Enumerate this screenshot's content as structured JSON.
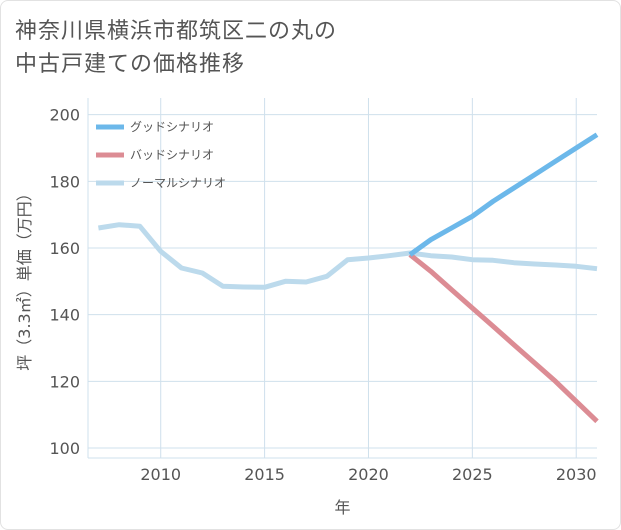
{
  "title": {
    "line1": "神奈川県横浜市都筑区二の丸の",
    "line2": "中古戸建ての価格推移"
  },
  "chart_data": {
    "type": "line",
    "xlabel": "年",
    "ylabel": "坪（3.3㎡）単価（万円）",
    "xlim": [
      2006.5,
      2031
    ],
    "ylim": [
      97,
      205
    ],
    "x_ticks": [
      2010,
      2015,
      2020,
      2025,
      2030
    ],
    "y_ticks": [
      100,
      120,
      140,
      160,
      180,
      200
    ],
    "grid": true,
    "legend_position": "top-left",
    "series": [
      {
        "name": "グッドシナリオ",
        "color": "#6cb8ea",
        "points": [
          [
            2022,
            158
          ],
          [
            2023,
            162.5
          ],
          [
            2024,
            166
          ],
          [
            2025,
            169.5
          ],
          [
            2026,
            174
          ],
          [
            2027,
            178
          ],
          [
            2028,
            182
          ],
          [
            2029,
            186
          ],
          [
            2030,
            190
          ],
          [
            2031,
            194
          ]
        ]
      },
      {
        "name": "バッドシナリオ",
        "color": "#dc8c94",
        "points": [
          [
            2022,
            158
          ],
          [
            2023,
            153
          ],
          [
            2024,
            147.5
          ],
          [
            2025,
            142
          ],
          [
            2026,
            136.5
          ],
          [
            2027,
            131
          ],
          [
            2028,
            125.5
          ],
          [
            2029,
            120
          ],
          [
            2030,
            114
          ],
          [
            2031,
            108
          ]
        ]
      },
      {
        "name": "ノーマルシナリオ",
        "color": "#bcdaec",
        "points": [
          [
            2007,
            166
          ],
          [
            2008,
            167
          ],
          [
            2009,
            166.5
          ],
          [
            2010,
            159
          ],
          [
            2011,
            154
          ],
          [
            2012,
            152.5
          ],
          [
            2013,
            148.5
          ],
          [
            2014,
            148.3
          ],
          [
            2015,
            148.2
          ],
          [
            2016,
            150
          ],
          [
            2017,
            149.8
          ],
          [
            2018,
            151.5
          ],
          [
            2019,
            156.5
          ],
          [
            2020,
            157
          ],
          [
            2021,
            157.7
          ],
          [
            2022,
            158.5
          ],
          [
            2023,
            157.7
          ],
          [
            2024,
            157.3
          ],
          [
            2025,
            156.5
          ],
          [
            2026,
            156.3
          ],
          [
            2027,
            155.6
          ],
          [
            2028,
            155.2
          ],
          [
            2029,
            154.9
          ],
          [
            2030,
            154.5
          ],
          [
            2031,
            153.8
          ]
        ]
      }
    ]
  }
}
